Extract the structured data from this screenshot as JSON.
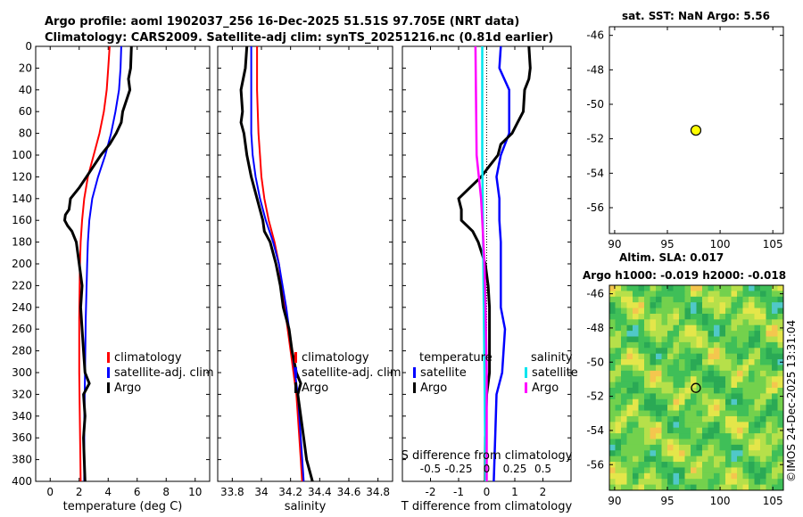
{
  "header": {
    "line1": "Argo profile: aoml 1902037_256 16-Dec-2025 51.51S 97.705E (NRT data)",
    "line2": "Climatology: CARS2009. Satellite-adj clim: synTS_20251216.nc (0.81d earlier)"
  },
  "side": {
    "map_title": "sat. SST: NaN Argo: 5.56",
    "sla_title1": "Altim. SLA: 0.017",
    "sla_title2": "Argo h1000: -0.019 h2000: -0.018",
    "stamp": "©IMOS 24-Dec-2025 13:31:04"
  },
  "colors": {
    "climatology": "#ff0000",
    "satellite": "#0000ff",
    "argo": "#000000",
    "sat_salinity": "#00e5ee",
    "argo_salinity": "#ff00ff"
  },
  "chart_data": [
    {
      "id": "temperature",
      "type": "line",
      "xlabel": "temperature (deg C)",
      "ylabel": "",
      "xlim": [
        -1,
        11
      ],
      "ylim": [
        400,
        0
      ],
      "xticks": [
        0,
        2,
        4,
        6,
        8,
        10
      ],
      "xtick_labels": [
        "0",
        "2",
        "4",
        "6",
        "8",
        "10"
      ],
      "yticks": [
        0,
        20,
        40,
        60,
        80,
        100,
        120,
        140,
        160,
        180,
        200,
        220,
        240,
        260,
        280,
        300,
        320,
        340,
        360,
        380,
        400
      ],
      "legend": [
        "climatology",
        "satellite-adj. clim",
        "Argo"
      ],
      "series": [
        {
          "name": "climatology",
          "color": "#ff0000",
          "depth": [
            0,
            20,
            40,
            60,
            80,
            100,
            120,
            140,
            160,
            180,
            200,
            250,
            300,
            350,
            400
          ],
          "values": [
            4.1,
            4.0,
            3.9,
            3.7,
            3.4,
            3.0,
            2.6,
            2.35,
            2.2,
            2.1,
            2.05,
            2.0,
            2.0,
            2.05,
            2.1
          ]
        },
        {
          "name": "satellite-adj. clim",
          "color": "#0000ff",
          "depth": [
            0,
            20,
            40,
            60,
            80,
            100,
            120,
            140,
            160,
            180,
            200,
            250,
            300,
            350,
            400
          ],
          "values": [
            4.9,
            4.85,
            4.75,
            4.5,
            4.2,
            3.8,
            3.3,
            2.9,
            2.7,
            2.6,
            2.55,
            2.45,
            2.4,
            2.35,
            2.35
          ]
        },
        {
          "name": "Argo",
          "color": "#000000",
          "depth": [
            0,
            20,
            30,
            40,
            60,
            70,
            80,
            90,
            100,
            110,
            120,
            130,
            140,
            150,
            155,
            160,
            165,
            170,
            180,
            200,
            220,
            240,
            260,
            280,
            300,
            310,
            320,
            340,
            360,
            380,
            400
          ],
          "values": [
            5.6,
            5.55,
            5.4,
            5.5,
            5.0,
            4.9,
            4.55,
            4.1,
            3.5,
            3.0,
            2.5,
            2.0,
            1.4,
            1.3,
            1.05,
            1.0,
            1.2,
            1.5,
            1.8,
            2.0,
            2.2,
            2.1,
            2.2,
            2.3,
            2.4,
            2.7,
            2.3,
            2.4,
            2.3,
            2.35,
            2.4
          ]
        }
      ]
    },
    {
      "id": "salinity",
      "type": "line",
      "xlabel": "salinity",
      "xlim": [
        33.7,
        34.9
      ],
      "ylim": [
        400,
        0
      ],
      "xticks": [
        33.8,
        34.0,
        34.2,
        34.4,
        34.6,
        34.8
      ],
      "xtick_labels": [
        "33.8",
        "34",
        "34.2",
        "34.4",
        "34.6",
        "34.8"
      ],
      "legend": [
        "climatology",
        "satellite-adj. clim",
        "Argo"
      ],
      "series": [
        {
          "name": "climatology",
          "color": "#ff0000",
          "depth": [
            0,
            40,
            80,
            100,
            120,
            140,
            160,
            180,
            200,
            240,
            280,
            320,
            360,
            400
          ],
          "values": [
            33.97,
            33.97,
            33.98,
            33.99,
            34.0,
            34.02,
            34.05,
            34.09,
            34.12,
            34.16,
            34.2,
            34.24,
            34.26,
            34.28
          ]
        },
        {
          "name": "satellite-adj. clim",
          "color": "#0000ff",
          "depth": [
            0,
            40,
            80,
            100,
            120,
            140,
            160,
            180,
            200,
            240,
            280,
            320,
            360,
            400
          ],
          "values": [
            33.93,
            33.93,
            33.93,
            33.94,
            33.96,
            33.99,
            34.03,
            34.08,
            34.12,
            34.17,
            34.21,
            34.25,
            34.27,
            34.29
          ]
        },
        {
          "name": "Argo",
          "color": "#000000",
          "depth": [
            0,
            20,
            40,
            60,
            70,
            80,
            100,
            120,
            140,
            160,
            170,
            180,
            200,
            220,
            240,
            260,
            280,
            300,
            310,
            320,
            340,
            360,
            380,
            390,
            400
          ],
          "values": [
            33.9,
            33.89,
            33.86,
            33.87,
            33.86,
            33.88,
            33.9,
            33.93,
            33.97,
            34.01,
            34.02,
            34.06,
            34.1,
            34.13,
            34.15,
            34.19,
            34.21,
            34.24,
            34.27,
            34.25,
            34.27,
            34.29,
            34.31,
            34.33,
            34.35
          ]
        }
      ]
    },
    {
      "id": "difference",
      "type": "line",
      "xlabel": "T difference from climatology",
      "top_label": "S difference from climatology",
      "xlim": [
        -3,
        3
      ],
      "ylim": [
        400,
        0
      ],
      "xticks": [
        -2,
        -1,
        0,
        1,
        2
      ],
      "xtick_labels": [
        "-2",
        "-1",
        "0",
        "1",
        "2"
      ],
      "sticks": [
        -0.5,
        -0.25,
        0,
        0.25,
        0.5
      ],
      "stick_labels": [
        "-0.5",
        "-0.25",
        "0",
        "0.25",
        "0.5"
      ],
      "legend_temperature": [
        "temperature",
        "satellite",
        "Argo"
      ],
      "legend_salinity": [
        "salinity",
        "satellite",
        "Argo"
      ],
      "series": [
        {
          "name": "temperature satellite",
          "color": "#0000ff",
          "depth": [
            0,
            20,
            40,
            60,
            80,
            100,
            120,
            140,
            160,
            180,
            200,
            240,
            260,
            300,
            320,
            360,
            400
          ],
          "values": [
            0.5,
            0.45,
            0.8,
            0.8,
            0.8,
            0.5,
            0.35,
            0.45,
            0.45,
            0.5,
            0.5,
            0.5,
            0.65,
            0.55,
            0.35,
            0.3,
            0.25
          ]
        },
        {
          "name": "temperature Argo",
          "color": "#000000",
          "depth": [
            0,
            20,
            30,
            40,
            60,
            70,
            80,
            90,
            100,
            110,
            120,
            130,
            140,
            150,
            160,
            170,
            180,
            200,
            220,
            240,
            260,
            300,
            320,
            360,
            400
          ],
          "values": [
            1.5,
            1.55,
            1.5,
            1.35,
            1.3,
            1.1,
            0.9,
            0.5,
            0.4,
            0.1,
            -0.2,
            -0.6,
            -1.0,
            -0.9,
            -0.9,
            -0.5,
            -0.3,
            -0.05,
            0.05,
            0.1,
            0.1,
            0.1,
            0.0,
            -0.05,
            -0.05
          ]
        },
        {
          "name": "salinity satellite",
          "color": "#00e5ee",
          "depth": [
            0,
            100,
            200,
            300,
            400
          ],
          "values": [
            -0.04,
            -0.04,
            -0.03,
            -0.02,
            -0.01
          ]
        },
        {
          "name": "salinity Argo",
          "color": "#ff00ff",
          "depth": [
            0,
            100,
            140,
            160,
            200,
            240,
            300,
            400
          ],
          "values": [
            -0.1,
            -0.09,
            -0.05,
            -0.04,
            -0.02,
            -0.01,
            0.0,
            0.0
          ]
        }
      ]
    },
    {
      "id": "position_map",
      "type": "scatter",
      "xlim": [
        89.5,
        106
      ],
      "ylim": [
        -57.5,
        -45.5
      ],
      "xticks": [
        90,
        95,
        100,
        105
      ],
      "xtick_labels": [
        "90",
        "95",
        "100",
        "105"
      ],
      "yticks": [
        -46,
        -48,
        -50,
        -52,
        -54,
        -56
      ],
      "ytick_labels": [
        "-46",
        "-48",
        "-50",
        "-52",
        "-54",
        "-56"
      ],
      "points": [
        {
          "x": 97.705,
          "y": -51.51,
          "color": "#ffff00"
        }
      ]
    },
    {
      "id": "sla_map",
      "type": "heatmap",
      "xlim": [
        89.5,
        106
      ],
      "ylim": [
        -57.5,
        -45.5
      ],
      "xticks": [
        90,
        95,
        100,
        105
      ],
      "xtick_labels": [
        "90",
        "95",
        "100",
        "105"
      ],
      "yticks": [
        -46,
        -48,
        -50,
        -52,
        -54,
        -56
      ],
      "ytick_labels": [
        "-46",
        "-48",
        "-50",
        "-52",
        "-54",
        "-56"
      ],
      "point": {
        "x": 97.705,
        "y": -51.51
      }
    }
  ]
}
